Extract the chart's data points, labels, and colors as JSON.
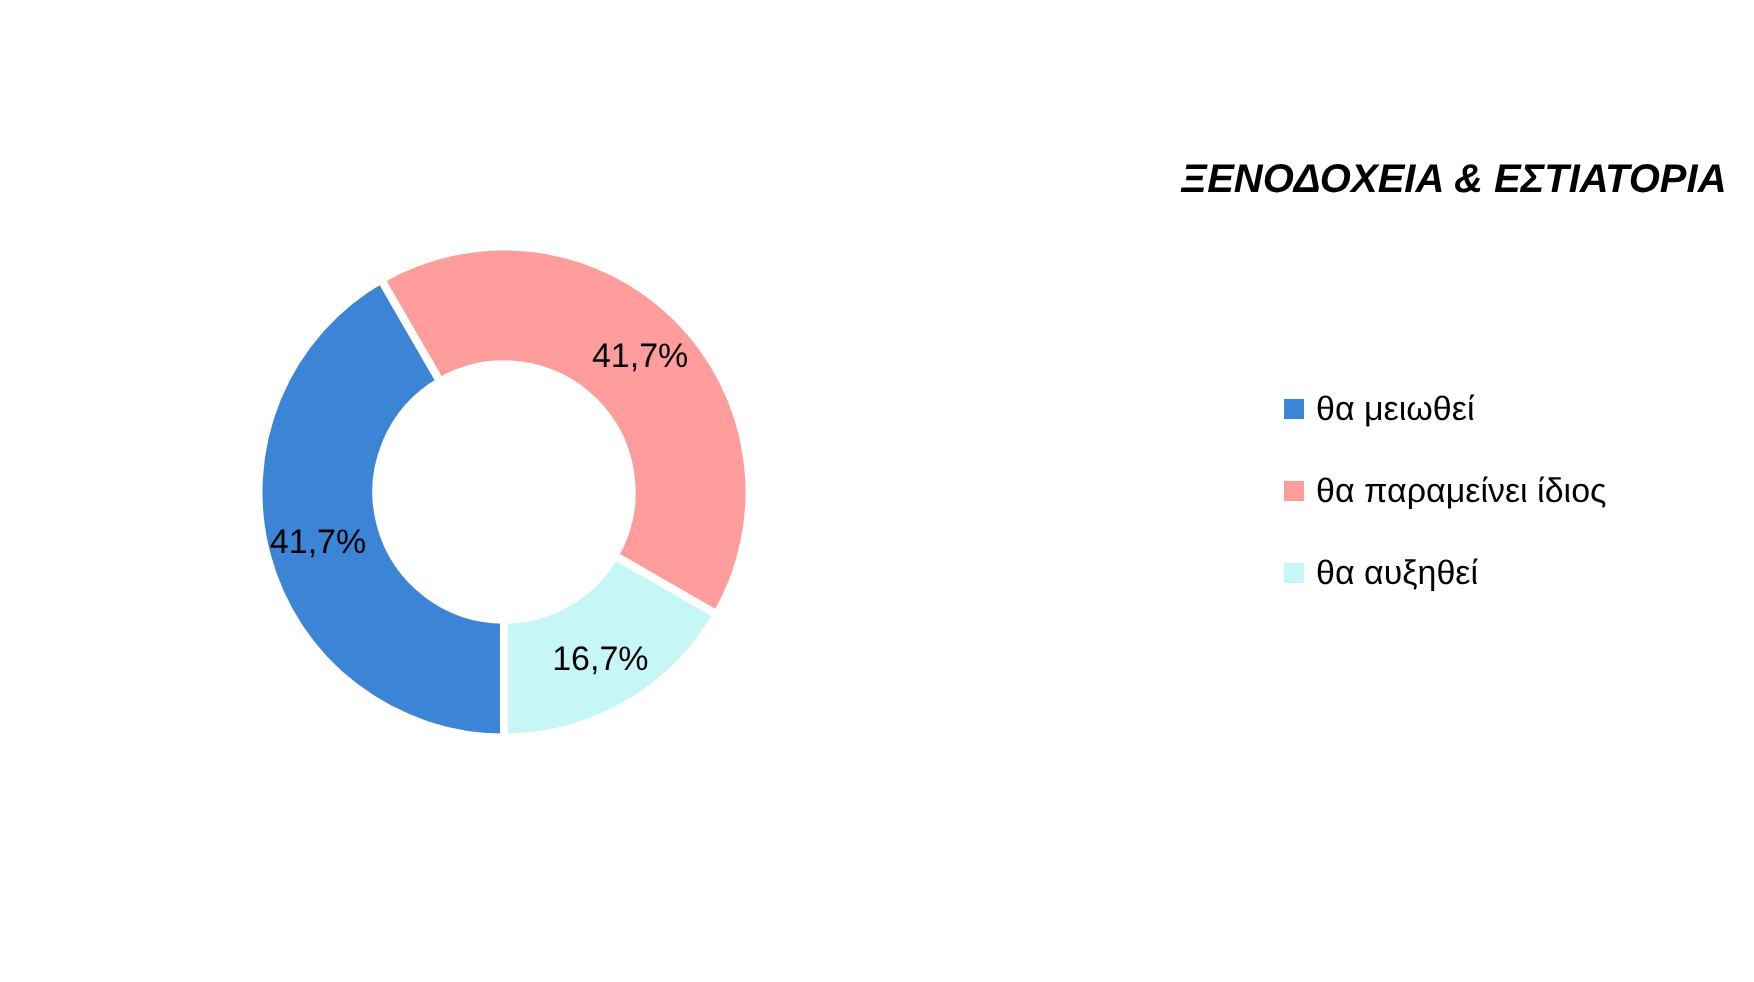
{
  "chart_data": {
    "type": "donut",
    "title": "ΞΕΝΟΔΟΧΕΙΑ & ΕΣΤΙΑΤΟΡΙΑ",
    "categories": [
      "θα μειωθεί",
      "θα παραμείνει ίδιος",
      "θα αυξηθεί"
    ],
    "values": [
      41.7,
      41.7,
      16.7
    ],
    "value_labels": [
      "41,7%",
      "41,7%",
      "16,7%"
    ],
    "colors": [
      "#3c84d6",
      "#ff9c9c",
      "#c6f6f6"
    ],
    "legend": "right"
  }
}
